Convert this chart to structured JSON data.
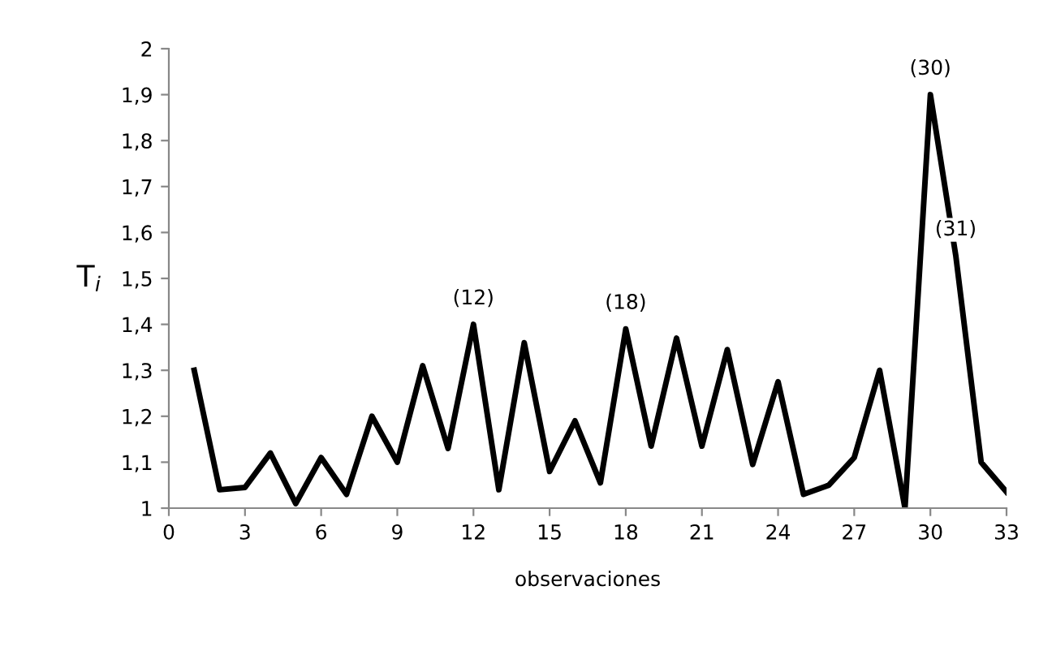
{
  "chart_data": {
    "type": "line",
    "xlabel": "observaciones",
    "ylabel": "T$_{i}$",
    "x": [
      1,
      2,
      3,
      4,
      5,
      6,
      7,
      8,
      9,
      10,
      11,
      12,
      13,
      14,
      15,
      16,
      17,
      18,
      19,
      20,
      21,
      22,
      23,
      24,
      25,
      26,
      27,
      28,
      29,
      30,
      31,
      32,
      33
    ],
    "series": [
      {
        "color": "#000000",
        "values": [
          1.3,
          1.04,
          1.045,
          1.12,
          1.01,
          1.11,
          1.03,
          1.2,
          1.1,
          1.31,
          1.13,
          1.4,
          1.04,
          1.36,
          1.08,
          1.19,
          1.055,
          1.39,
          1.135,
          1.37,
          1.135,
          1.345,
          1.095,
          1.275,
          1.03,
          1.05,
          1.11,
          1.3,
          1.0,
          1.9,
          1.55,
          1.1,
          1.035
        ]
      }
    ],
    "xlim": [
      0,
      33
    ],
    "xticks": [
      0,
      3,
      6,
      9,
      12,
      15,
      18,
      21,
      24,
      27,
      30,
      33
    ],
    "ylim": [
      1,
      2
    ],
    "yticks": [
      1,
      {
        "value": 1.1,
        "label": "1,1"
      },
      {
        "value": 1.2,
        "label": "1,2"
      },
      {
        "value": 1.3,
        "label": "1,3"
      },
      {
        "value": 1.4,
        "label": "1,4"
      },
      {
        "value": 1.5,
        "label": "1,5"
      },
      {
        "value": 1.6,
        "label": "1,6"
      },
      {
        "value": 1.7,
        "label": "1,7"
      },
      {
        "value": 1.8,
        "label": "1,8"
      },
      {
        "value": 1.9,
        "label": "1,9"
      },
      2
    ],
    "annotations": [
      {
        "text": "(12)",
        "x": 12,
        "y": 1.4
      },
      {
        "text": "(18)",
        "x": 18,
        "y": 1.39
      },
      {
        "text": "(30)",
        "x": 30,
        "y": 1.9
      },
      {
        "text": "(31)",
        "x": 31,
        "y": 1.55
      }
    ],
    "grid": false,
    "legend": false,
    "marker": "none",
    "line_style": "solid"
  }
}
